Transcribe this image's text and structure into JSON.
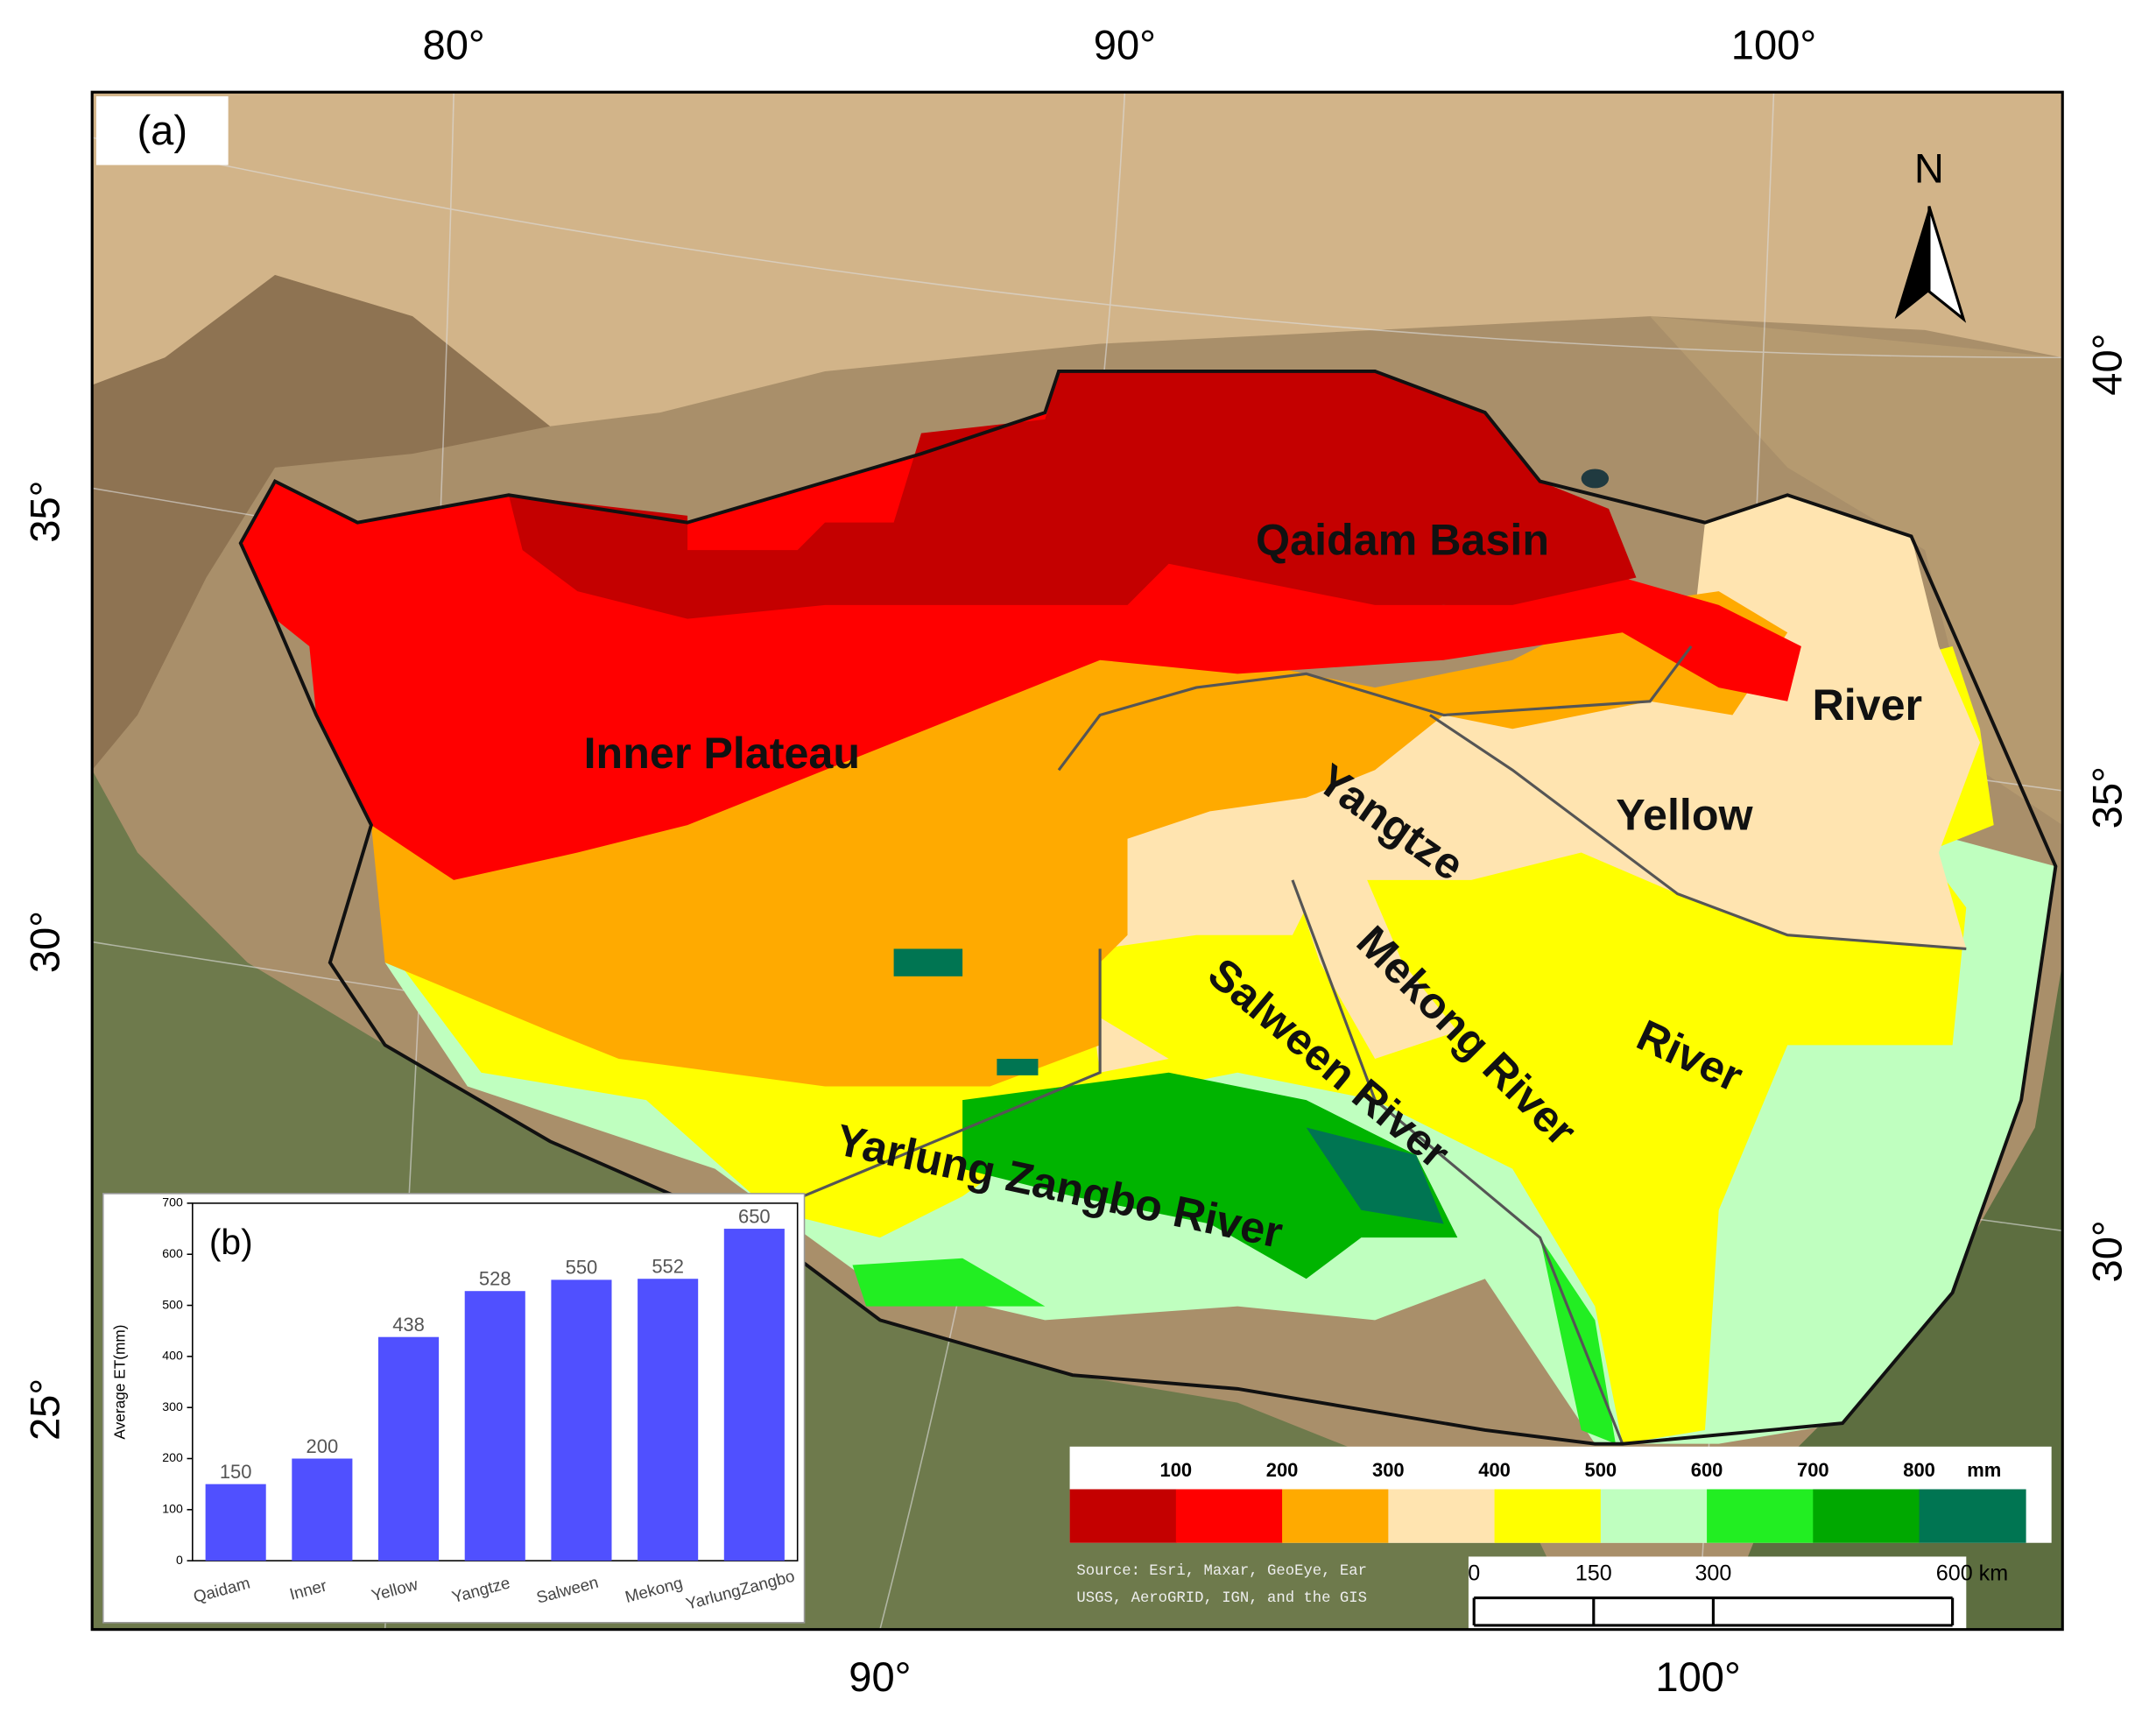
{
  "map": {
    "panel_label": "(a)",
    "top_lon_labels": [
      "80°",
      "90°",
      "100°"
    ],
    "bottom_lon_labels": [
      "90°",
      "100°"
    ],
    "left_lat_labels": [
      "35°",
      "30°",
      "25°"
    ],
    "right_lat_labels": [
      "40°",
      "35°",
      "30°"
    ],
    "regions": [
      "Qaidam Basin",
      "Inner Plateau",
      "Yangtze",
      "Yellow",
      "River",
      "Mekong River",
      "Salween River",
      "River",
      "Yarlung Zangbo River"
    ],
    "north": "N",
    "legend": {
      "ticks": [
        100,
        200,
        300,
        400,
        500,
        600,
        700,
        800
      ],
      "unit": "mm",
      "colors": [
        "#c40000",
        "#ff0000",
        "#ffaa00",
        "#ffe4b0",
        "#ffff00",
        "#bfffbf",
        "#22ee22",
        "#00a800",
        "#007552"
      ]
    },
    "source": [
      "Source: Esri, Maxar, GeoEye, Ear",
      "USGS, AeroGRID, IGN, and the GIS"
    ],
    "scale_bar": [
      {
        "value": 0,
        "label": "0"
      },
      {
        "value": 150,
        "label": "150"
      },
      {
        "value": 300,
        "label": "300"
      },
      {
        "value": 600,
        "label": "600 km"
      }
    ]
  },
  "chart_data": {
    "type": "bar",
    "panel_label": "(b)",
    "y_label": "Average ET(mm)",
    "categories": [
      "Qaidam",
      "Inner",
      "Yellow",
      "Yangtze",
      "Salween",
      "Mekong",
      "YarlungZangbo"
    ],
    "values": [
      150,
      200,
      438,
      528,
      550,
      552,
      650
    ],
    "color": "#5050ff",
    "ylim": [
      0,
      700
    ],
    "yticks": [
      0,
      100,
      200,
      300,
      400,
      500,
      600,
      700
    ]
  }
}
